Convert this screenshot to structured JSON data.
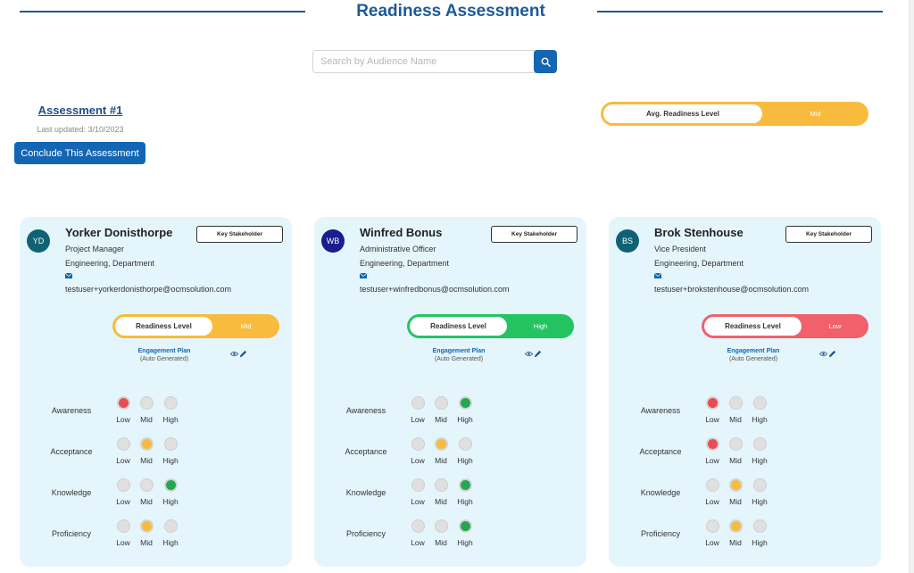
{
  "title": "Readiness Assessment",
  "search": {
    "placeholder": "Search by Audience Name",
    "icon": "search-icon"
  },
  "assessment": {
    "title": "Assessment #1",
    "last_updated": "Last updated: 3/10/2023",
    "conclude_label": "Conclude This Assessment"
  },
  "avg": {
    "label": "Avg. Readiness Level",
    "value": "Mid",
    "color": "#f8bb3d"
  },
  "colors": {
    "brand": "#1466b3",
    "title": "#1c5a99",
    "card_bg": "#e4f5fc",
    "low": "#e84c55",
    "mid": "#f8bb3d",
    "high": "#24a652"
  },
  "level_labels": [
    "Low",
    "Mid",
    "High"
  ],
  "cards": [
    {
      "initials": "YD",
      "avatar_color": "#0f6275",
      "name": "Yorker Donisthorpe",
      "badge": "Key Stakeholder",
      "role": "Project Manager",
      "department": "Engineering, Department",
      "email": "testuser+yorkerdonisthorpe@ocmsolution.com",
      "readiness_label": "Readiness Level",
      "readiness": "Mid",
      "readiness_color": "#f8bb3d",
      "plan_link": "Engagement Plan",
      "plan_sub": "(Auto Generated)",
      "metrics": [
        {
          "label": "Awareness",
          "level": "Low"
        },
        {
          "label": "Acceptance",
          "level": "Mid"
        },
        {
          "label": "Knowledge",
          "level": "High"
        },
        {
          "label": "Proficiency",
          "level": "Mid"
        }
      ]
    },
    {
      "initials": "WB",
      "avatar_color": "#1a1d8e",
      "name": "Winfred Bonus",
      "badge": "Key Stakeholder",
      "role": "Administrative Officer",
      "department": "Engineering, Department",
      "email": "testuser+winfredbonus@ocmsolution.com",
      "readiness_label": "Readiness Level",
      "readiness": "High",
      "readiness_color": "#24c463",
      "plan_link": "Engagement Plan",
      "plan_sub": "(Auto Generated)",
      "metrics": [
        {
          "label": "Awareness",
          "level": "High"
        },
        {
          "label": "Acceptance",
          "level": "Mid"
        },
        {
          "label": "Knowledge",
          "level": "High"
        },
        {
          "label": "Proficiency",
          "level": "High"
        }
      ]
    },
    {
      "initials": "BS",
      "avatar_color": "#0f6275",
      "name": "Brok Stenhouse",
      "badge": "Key Stakeholder",
      "role": "Vice President",
      "department": "Engineering, Department",
      "email": "testuser+brokstenhouse@ocmsolution.com",
      "readiness_label": "Readiness Level",
      "readiness": "Low",
      "readiness_color": "#f0616b",
      "plan_link": "Engagement Plan",
      "plan_sub": "(Auto Generated)",
      "metrics": [
        {
          "label": "Awareness",
          "level": "Low"
        },
        {
          "label": "Acceptance",
          "level": "Low"
        },
        {
          "label": "Knowledge",
          "level": "Mid"
        },
        {
          "label": "Proficiency",
          "level": "Mid"
        }
      ]
    }
  ]
}
